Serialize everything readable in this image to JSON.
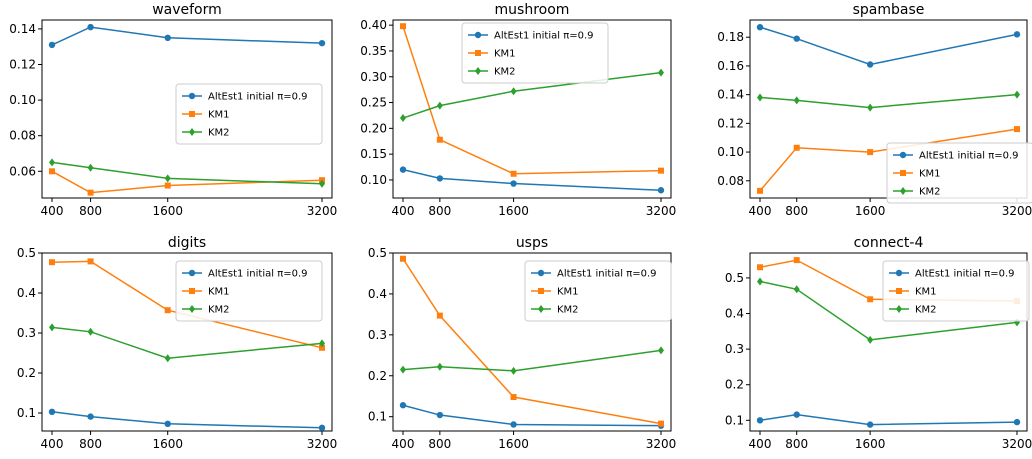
{
  "chart_data": [
    {
      "type": "line",
      "title": "waveform",
      "x": [
        400,
        800,
        1600,
        3200
      ],
      "x_ticks": [
        "400",
        "800",
        "1600",
        "3200"
      ],
      "ylim": [
        0.045,
        0.145
      ],
      "y_ticks": [
        0.06,
        0.08,
        0.1,
        0.12,
        0.14
      ],
      "y_tick_labels": [
        "0.06",
        "0.08",
        "0.10",
        "0.12",
        "0.14"
      ],
      "legend": "center-right",
      "series": [
        {
          "name": "AltEst1 initial π=0.9",
          "color": "#1f77b4",
          "marker": "circle",
          "values": [
            0.131,
            0.141,
            0.135,
            0.132
          ]
        },
        {
          "name": "KM1",
          "color": "#ff7f0e",
          "marker": "square",
          "values": [
            0.06,
            0.048,
            0.052,
            0.055
          ]
        },
        {
          "name": "KM2",
          "color": "#2ca02c",
          "marker": "diamond",
          "values": [
            0.065,
            0.062,
            0.056,
            0.053
          ]
        }
      ]
    },
    {
      "type": "line",
      "title": "mushroom",
      "x": [
        400,
        800,
        1600,
        3200
      ],
      "x_ticks": [
        "400",
        "800",
        "1600",
        "3200"
      ],
      "ylim": [
        0.065,
        0.41
      ],
      "y_ticks": [
        0.1,
        0.15,
        0.2,
        0.25,
        0.3,
        0.35,
        0.4
      ],
      "y_tick_labels": [
        "0.10",
        "0.15",
        "0.20",
        "0.25",
        "0.30",
        "0.35",
        "0.40"
      ],
      "legend": "top-center",
      "series": [
        {
          "name": "AltEst1 initial π=0.9",
          "color": "#1f77b4",
          "marker": "circle",
          "values": [
            0.12,
            0.103,
            0.093,
            0.08
          ]
        },
        {
          "name": "KM1",
          "color": "#ff7f0e",
          "marker": "square",
          "values": [
            0.398,
            0.178,
            0.112,
            0.118
          ]
        },
        {
          "name": "KM2",
          "color": "#2ca02c",
          "marker": "diamond",
          "values": [
            0.22,
            0.244,
            0.272,
            0.308
          ]
        }
      ]
    },
    {
      "type": "line",
      "title": "spambase",
      "x": [
        400,
        800,
        1600,
        3200
      ],
      "x_ticks": [
        "400",
        "800",
        "1600",
        "3200"
      ],
      "ylim": [
        0.068,
        0.192
      ],
      "y_ticks": [
        0.08,
        0.1,
        0.12,
        0.14,
        0.16,
        0.18
      ],
      "y_tick_labels": [
        "0.08",
        "0.10",
        "0.12",
        "0.14",
        "0.16",
        "0.18"
      ],
      "legend": "lower-right",
      "series": [
        {
          "name": "AltEst1 initial π=0.9",
          "color": "#1f77b4",
          "marker": "circle",
          "values": [
            0.187,
            0.179,
            0.161,
            0.182
          ]
        },
        {
          "name": "KM1",
          "color": "#ff7f0e",
          "marker": "square",
          "values": [
            0.073,
            0.103,
            0.1,
            0.116
          ]
        },
        {
          "name": "KM2",
          "color": "#2ca02c",
          "marker": "diamond",
          "values": [
            0.138,
            0.136,
            0.131,
            0.14
          ]
        }
      ]
    },
    {
      "type": "line",
      "title": "digits",
      "x": [
        400,
        800,
        1600,
        3200
      ],
      "x_ticks": [
        "400",
        "800",
        "1600",
        "3200"
      ],
      "ylim": [
        0.055,
        0.5
      ],
      "y_ticks": [
        0.1,
        0.2,
        0.3,
        0.4,
        0.5
      ],
      "y_tick_labels": [
        "0.1",
        "0.2",
        "0.3",
        "0.4",
        "0.5"
      ],
      "legend": "top-right",
      "series": [
        {
          "name": "AltEst1 initial π=0.9",
          "color": "#1f77b4",
          "marker": "circle",
          "values": [
            0.103,
            0.091,
            0.073,
            0.063
          ]
        },
        {
          "name": "KM1",
          "color": "#ff7f0e",
          "marker": "square",
          "values": [
            0.477,
            0.479,
            0.357,
            0.263
          ]
        },
        {
          "name": "KM2",
          "color": "#2ca02c",
          "marker": "diamond",
          "values": [
            0.314,
            0.303,
            0.237,
            0.274
          ]
        }
      ]
    },
    {
      "type": "line",
      "title": "usps",
      "x": [
        400,
        800,
        1600,
        3200
      ],
      "x_ticks": [
        "400",
        "800",
        "1600",
        "3200"
      ],
      "ylim": [
        0.065,
        0.5
      ],
      "y_ticks": [
        0.1,
        0.2,
        0.3,
        0.4,
        0.5
      ],
      "y_tick_labels": [
        "0.1",
        "0.2",
        "0.3",
        "0.4",
        "0.5"
      ],
      "legend": "top-right",
      "series": [
        {
          "name": "AltEst1 initial π=0.9",
          "color": "#1f77b4",
          "marker": "circle",
          "values": [
            0.128,
            0.104,
            0.081,
            0.078
          ]
        },
        {
          "name": "KM1",
          "color": "#ff7f0e",
          "marker": "square",
          "values": [
            0.486,
            0.347,
            0.148,
            0.083
          ]
        },
        {
          "name": "KM2",
          "color": "#2ca02c",
          "marker": "diamond",
          "values": [
            0.215,
            0.222,
            0.212,
            0.262
          ]
        }
      ]
    },
    {
      "type": "line",
      "title": "connect-4",
      "x": [
        400,
        800,
        1600,
        3200
      ],
      "x_ticks": [
        "400",
        "800",
        "1600",
        "3200"
      ],
      "ylim": [
        0.07,
        0.57
      ],
      "y_ticks": [
        0.1,
        0.2,
        0.3,
        0.4,
        0.5
      ],
      "y_tick_labels": [
        "0.1",
        "0.2",
        "0.3",
        "0.4",
        "0.5"
      ],
      "legend": "top-right",
      "series": [
        {
          "name": "AltEst1 initial π=0.9",
          "color": "#1f77b4",
          "marker": "circle",
          "values": [
            0.1,
            0.116,
            0.088,
            0.095
          ]
        },
        {
          "name": "KM1",
          "color": "#ff7f0e",
          "marker": "square",
          "values": [
            0.53,
            0.55,
            0.44,
            0.435
          ]
        },
        {
          "name": "KM2",
          "color": "#2ca02c",
          "marker": "diamond",
          "values": [
            0.49,
            0.468,
            0.326,
            0.375
          ]
        }
      ]
    }
  ]
}
